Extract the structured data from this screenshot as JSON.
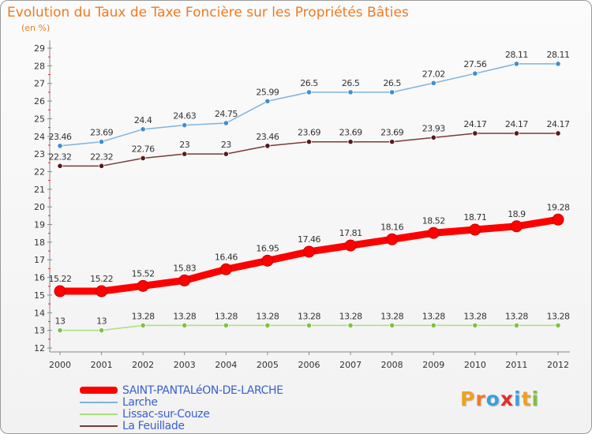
{
  "title": "Evolution du Taux de Taxe Foncière sur les Propriétés Bâties",
  "unit": "(en %)",
  "brand": {
    "text": "Proxiti",
    "letter_colors": [
      "#f0a020",
      "#f07a22",
      "#3aa0e0",
      "#e0302a",
      "#3aa0e0",
      "#f0a020",
      "#80c040"
    ]
  },
  "chart_data": {
    "type": "line",
    "title": "Evolution du Taux de Taxe Foncière sur les Propriétés Bâties",
    "ylabel": "(en %)",
    "xlabel": "",
    "x": [
      "2000",
      "2001",
      "2002",
      "2003",
      "2004",
      "2005",
      "2006",
      "2007",
      "2008",
      "2009",
      "2010",
      "2011",
      "2012"
    ],
    "ylim": [
      12,
      29
    ],
    "yticks": [
      12,
      13,
      14,
      15,
      16,
      17,
      18,
      19,
      20,
      21,
      22,
      23,
      24,
      25,
      26,
      27,
      28,
      29
    ],
    "grid": false,
    "legend_position": "bottom-left",
    "series": [
      {
        "name": "SAINT-PANTALéON-DE-LARCHE",
        "color": "#ff0000",
        "point_color": "#ff0000",
        "thick": true,
        "values": [
          15.22,
          15.22,
          15.52,
          15.83,
          16.46,
          16.95,
          17.46,
          17.81,
          18.16,
          18.52,
          18.71,
          18.9,
          19.28
        ],
        "labels": [
          "15.22",
          "15.22",
          "15.52",
          "15.83",
          "16.46",
          "16.95",
          "17.46",
          "17.81",
          "18.16",
          "18.52",
          "18.71",
          "18.9",
          "19.28"
        ]
      },
      {
        "name": "Larche",
        "color": "#7fb3df",
        "point_color": "#3f8fd0",
        "thick": false,
        "values": [
          23.46,
          23.69,
          24.4,
          24.63,
          24.75,
          25.99,
          26.5,
          26.5,
          26.5,
          27.02,
          27.56,
          28.11,
          28.11
        ],
        "labels": [
          "23.46",
          "23.69",
          "24.4",
          "24.63",
          "24.75",
          "25.99",
          "26.5",
          "26.5",
          "26.5",
          "27.02",
          "27.56",
          "28.11",
          "28.11"
        ]
      },
      {
        "name": "Lissac-sur-Couze",
        "color": "#a8e07a",
        "point_color": "#7cc440",
        "thick": false,
        "values": [
          13,
          13,
          13.28,
          13.28,
          13.28,
          13.28,
          13.28,
          13.28,
          13.28,
          13.28,
          13.28,
          13.28,
          13.28
        ],
        "labels": [
          "13",
          "13",
          "13.28",
          "13.28",
          "13.28",
          "13.28",
          "13.28",
          "13.28",
          "13.28",
          "13.28",
          "13.28",
          "13.28",
          "13.28"
        ]
      },
      {
        "name": "La Feuillade",
        "color": "#7a3a3a",
        "point_color": "#5a1a1a",
        "thick": false,
        "values": [
          22.32,
          22.32,
          22.76,
          23,
          23,
          23.46,
          23.69,
          23.69,
          23.69,
          23.93,
          24.17,
          24.17,
          24.17
        ],
        "labels": [
          "22.32",
          "22.32",
          "22.76",
          "23",
          "23",
          "23.46",
          "23.69",
          "23.69",
          "23.69",
          "23.93",
          "24.17",
          "24.17",
          "24.17"
        ]
      }
    ]
  }
}
